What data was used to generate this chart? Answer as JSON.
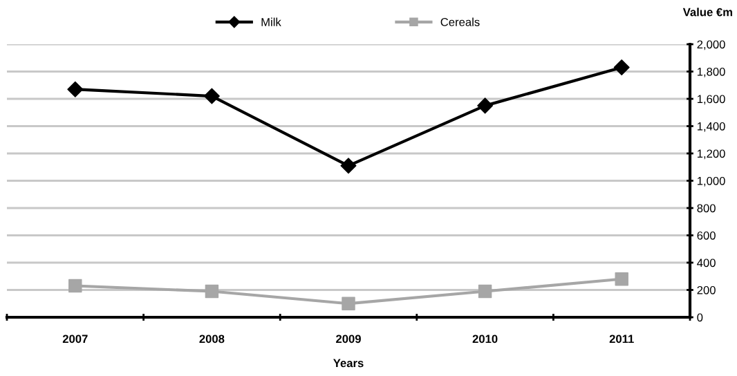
{
  "chart_data": {
    "type": "line",
    "xlabel": "Years",
    "ylabel": "Value €m",
    "categories": [
      "2007",
      "2008",
      "2009",
      "2010",
      "2011"
    ],
    "series": [
      {
        "name": "Milk",
        "color": "#000000",
        "marker": "diamond",
        "values": [
          1670,
          1620,
          1110,
          1550,
          1830
        ]
      },
      {
        "name": "Cereals",
        "color": "#a6a6a6",
        "marker": "square",
        "values": [
          230,
          190,
          100,
          190,
          280
        ]
      }
    ],
    "ylim": [
      0,
      2000
    ],
    "yticks": [
      {
        "value": 0,
        "label": "0"
      },
      {
        "value": 200,
        "label": "200"
      },
      {
        "value": 400,
        "label": "400"
      },
      {
        "value": 600,
        "label": "600"
      },
      {
        "value": 800,
        "label": "800"
      },
      {
        "value": 1000,
        "label": "1,000"
      },
      {
        "value": 1200,
        "label": "1,200"
      },
      {
        "value": 1400,
        "label": "1,400"
      },
      {
        "value": 1600,
        "label": "1,600"
      },
      {
        "value": 1800,
        "label": "1,800"
      },
      {
        "value": 2000,
        "label": "2,000"
      }
    ],
    "grid": "y",
    "legend": "top",
    "line_style": "solid"
  }
}
